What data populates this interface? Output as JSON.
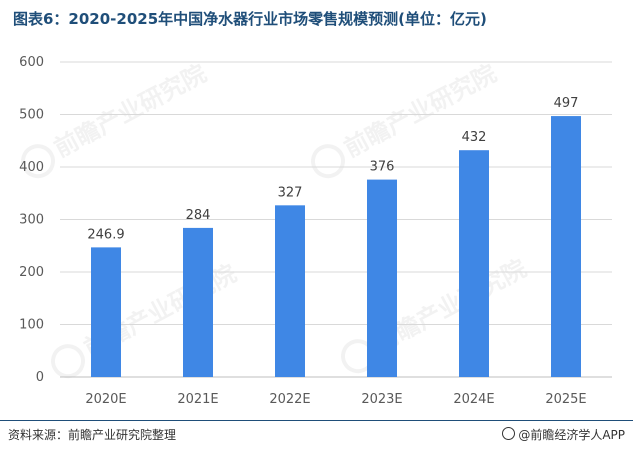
{
  "title": "图表6：2020-2025年中国净水器行业市场零售规模预测(单位：亿元)",
  "watermark": "前瞻产业研究院",
  "source": "资料来源：前瞻产业研究院整理",
  "brand": "@前瞻经济学人APP",
  "colors": {
    "bar": "#3f87e5",
    "title": "#1f4e79",
    "grid": "#d9d9d9"
  },
  "chart_data": {
    "type": "bar",
    "title": "图表6：2020-2025年中国净水器行业市场零售规模预测(单位：亿元)",
    "categories": [
      "2020E",
      "2021E",
      "2022E",
      "2023E",
      "2024E",
      "2025E"
    ],
    "values": [
      246.9,
      284,
      327,
      376,
      432,
      497
    ],
    "value_labels": [
      "246.9",
      "284",
      "327",
      "376",
      "432",
      "497"
    ],
    "ylim": [
      0,
      600
    ],
    "yticks": [
      0,
      100,
      200,
      300,
      400,
      500,
      600
    ],
    "grid": true,
    "legend": "none"
  }
}
